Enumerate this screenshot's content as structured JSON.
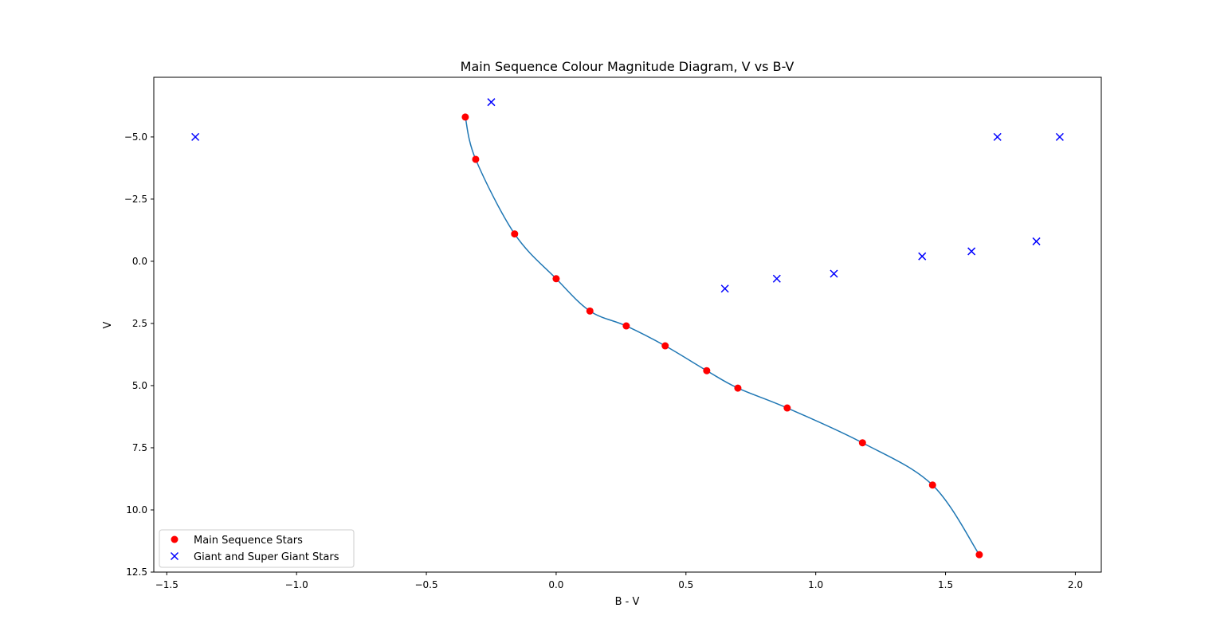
{
  "chart_data": {
    "type": "scatter",
    "title": "Main Sequence Colour Magnitude Diagram, V vs B-V",
    "xlabel": "B - V",
    "ylabel": "V",
    "xlim": [
      -1.55,
      2.1
    ],
    "ylim": [
      12.5,
      -7.4
    ],
    "y_inverted": true,
    "grid": false,
    "legend_position": "lower-left",
    "x_ticks": [
      -1.5,
      -1.0,
      -0.5,
      0.0,
      0.5,
      1.0,
      1.5,
      2.0
    ],
    "x_tick_labels": [
      "−1.5",
      "−1.0",
      "−0.5",
      "0.0",
      "0.5",
      "1.0",
      "1.5",
      "2.0"
    ],
    "y_ticks": [
      -5.0,
      -2.5,
      0.0,
      2.5,
      5.0,
      7.5,
      10.0,
      12.5
    ],
    "y_tick_labels": [
      "−5.0",
      "−2.5",
      "0.0",
      "2.5",
      "5.0",
      "7.5",
      "10.0",
      "12.5"
    ],
    "series": [
      {
        "name": "Main Sequence Stars",
        "marker": "circle",
        "color": "#ff0000",
        "x": [
          -0.35,
          -0.31,
          -0.16,
          0.0,
          0.13,
          0.27,
          0.42,
          0.58,
          0.7,
          0.89,
          1.18,
          1.45,
          1.63
        ],
        "y": [
          -5.8,
          -4.1,
          -1.1,
          0.7,
          2.0,
          2.6,
          3.4,
          4.4,
          5.1,
          5.9,
          7.3,
          9.0,
          11.8
        ]
      },
      {
        "name": "Giant and Super Giant Stars",
        "marker": "x",
        "color": "#0000ff",
        "x": [
          -1.39,
          -0.25,
          0.65,
          0.85,
          1.07,
          1.41,
          1.6,
          1.7,
          1.85,
          1.94
        ],
        "y": [
          -5.0,
          -6.4,
          1.1,
          0.7,
          0.5,
          -0.2,
          -0.4,
          -5.0,
          -0.8,
          -5.0
        ]
      },
      {
        "name": "",
        "marker": "none",
        "style": "smooth-line",
        "color": "#1f77b4",
        "fit_of": "Main Sequence Stars"
      }
    ]
  }
}
